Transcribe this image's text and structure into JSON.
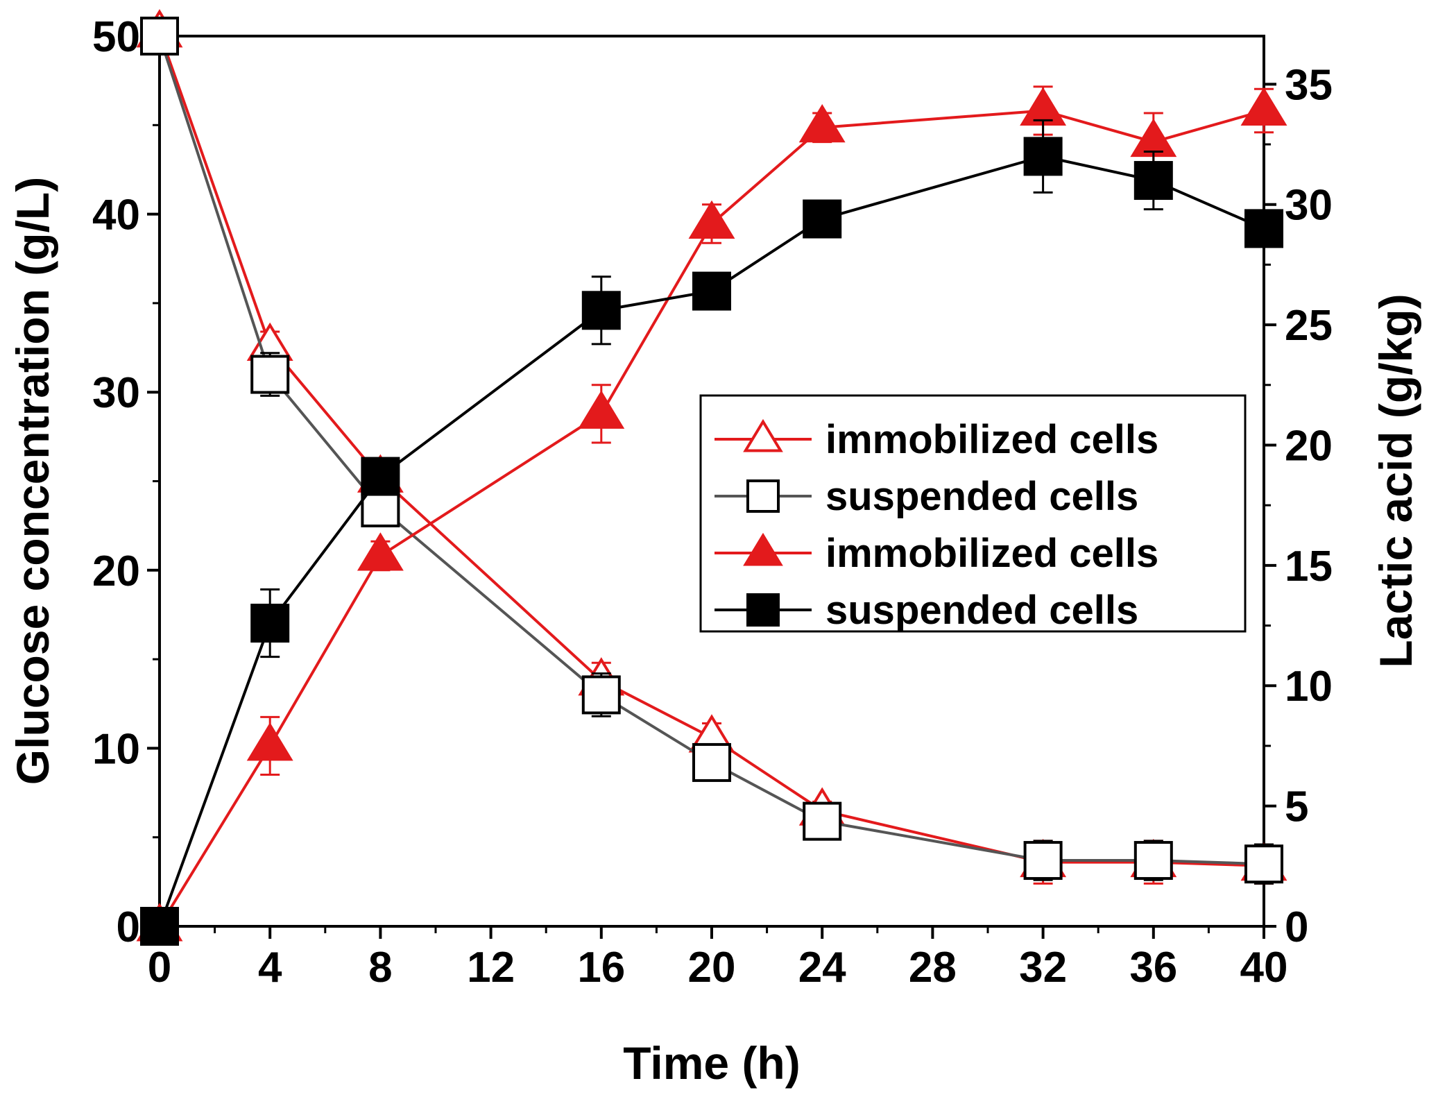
{
  "chart_data": {
    "type": "line",
    "xlabel": "Time (h)",
    "ylabel_left": "Glucose concentration (g/L)",
    "ylabel_right": "Lactic acid (g/kg)",
    "xlim": [
      0,
      40
    ],
    "ylim_left": [
      0,
      50
    ],
    "ylim_right": [
      0,
      37
    ],
    "x_ticks": [
      "0",
      "4",
      "8",
      "12",
      "16",
      "20",
      "24",
      "28",
      "32",
      "36",
      "40"
    ],
    "y_left_ticks": [
      "0",
      "10",
      "20",
      "30",
      "40",
      "50"
    ],
    "y_right_ticks": [
      "0",
      "5",
      "10",
      "15",
      "20",
      "25",
      "30",
      "35"
    ],
    "grid": false,
    "legend_position": "center-right",
    "series": [
      {
        "name": "immobilized cells",
        "axis": "left",
        "color": "#e31a1c",
        "marker": "triangle-open",
        "x": [
          0,
          4,
          8,
          16,
          20,
          24,
          32,
          36,
          40
        ],
        "y": [
          50.2,
          32.6,
          25.2,
          13.8,
          10.6,
          6.5,
          3.6,
          3.6,
          3.4
        ],
        "err": [
          0,
          0.8,
          0.8,
          1.0,
          0.8,
          0.5,
          1.2,
          1.2,
          1.0
        ]
      },
      {
        "name": "suspended cells",
        "axis": "left",
        "color": "#555555",
        "marker": "square-open",
        "x": [
          0,
          4,
          8,
          16,
          20,
          24,
          32,
          36,
          40
        ],
        "y": [
          50.0,
          31.0,
          23.5,
          13.0,
          9.2,
          5.9,
          3.7,
          3.7,
          3.5
        ],
        "err": [
          0,
          1.2,
          0.6,
          1.2,
          0.8,
          0.5,
          1.1,
          1.1,
          1.1
        ]
      },
      {
        "name": "immobilized cells",
        "axis": "right",
        "color": "#e31a1c",
        "marker": "triangle-filled",
        "x": [
          0,
          4,
          8,
          16,
          20,
          24,
          32,
          36,
          40
        ],
        "y": [
          0,
          7.5,
          15.4,
          21.3,
          29.2,
          33.2,
          33.9,
          32.6,
          33.9
        ],
        "err": [
          0,
          1.2,
          0.6,
          1.2,
          0.8,
          0.6,
          1.0,
          1.2,
          0.9
        ]
      },
      {
        "name": "suspended cells",
        "axis": "right",
        "color": "#000000",
        "marker": "square-filled",
        "x": [
          0,
          4,
          8,
          16,
          20,
          24,
          32,
          36,
          40
        ],
        "y": [
          0,
          12.6,
          18.7,
          25.6,
          26.4,
          29.4,
          32.0,
          31.0,
          29.0
        ],
        "err": [
          0,
          1.4,
          0.6,
          1.4,
          0.6,
          0,
          1.5,
          1.2,
          0
        ]
      }
    ]
  }
}
